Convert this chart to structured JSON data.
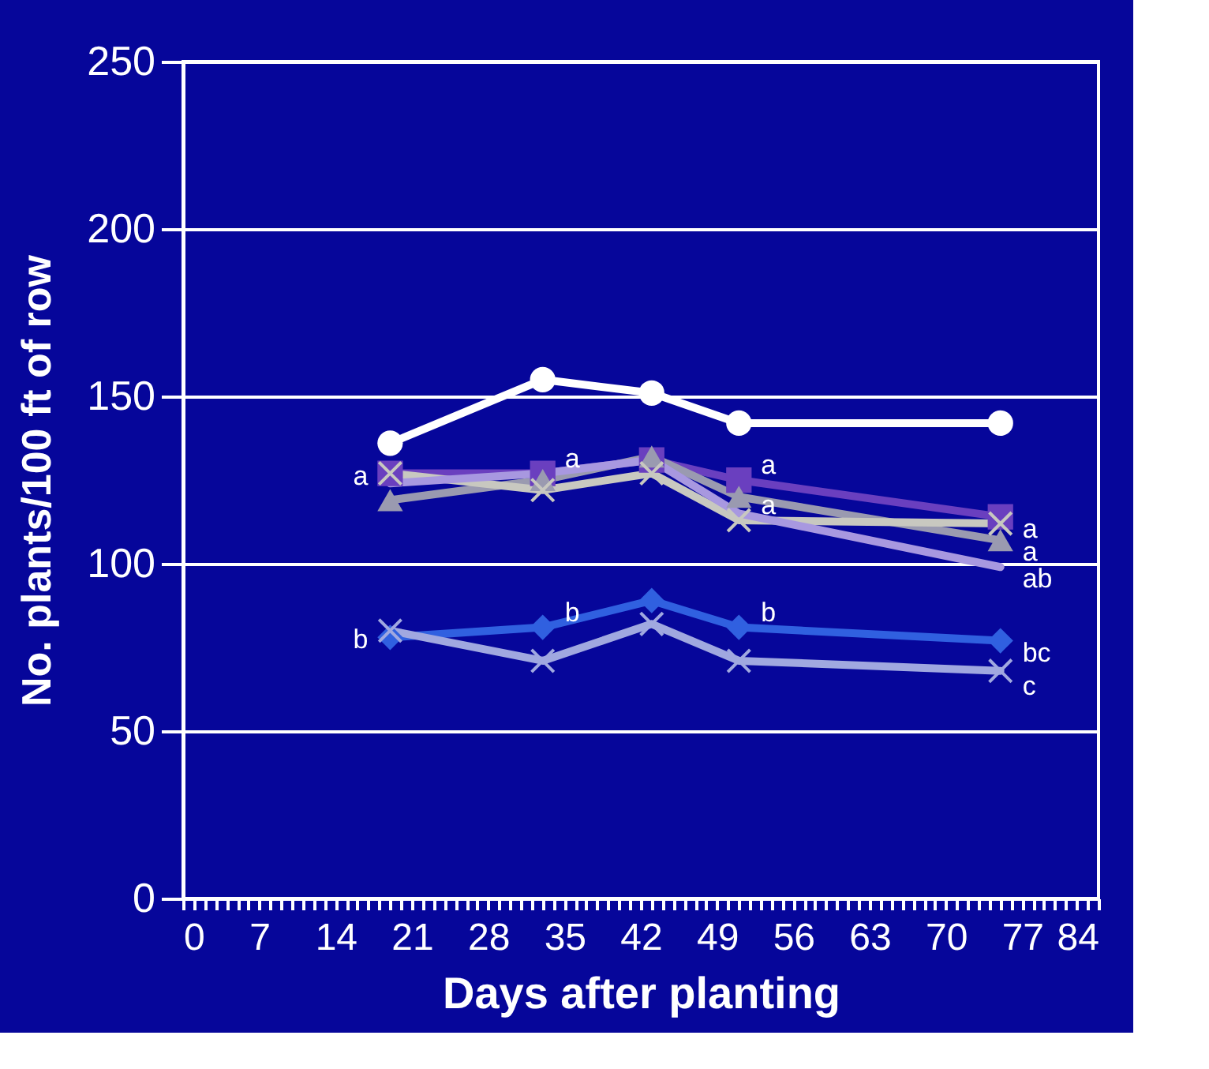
{
  "chart_data": {
    "type": "line",
    "xlabel": "Days after planting",
    "ylabel": "No. plants/100 ft of row",
    "x": [
      19,
      33,
      43,
      51,
      75
    ],
    "xlim": [
      0,
      84
    ],
    "ylim": [
      0,
      250
    ],
    "xticks": [
      0,
      {
        "value": 1,
        "label": null
      },
      {
        "value": 2,
        "label": null
      },
      {
        "value": 3,
        "label": null
      },
      {
        "value": 4,
        "label": null
      },
      {
        "value": 5,
        "label": null
      },
      {
        "value": 6,
        "label": null
      },
      7,
      {
        "value": 8,
        "label": null
      },
      {
        "value": 9,
        "label": null
      },
      {
        "value": 10,
        "label": null
      },
      {
        "value": 11,
        "label": null
      },
      {
        "value": 12,
        "label": null
      },
      {
        "value": 13,
        "label": null
      },
      14,
      {
        "value": 15,
        "label": null
      },
      {
        "value": 16,
        "label": null
      },
      {
        "value": 17,
        "label": null
      },
      {
        "value": 18,
        "label": null
      },
      {
        "value": 19,
        "label": null
      },
      {
        "value": 20,
        "label": null
      },
      21,
      {
        "value": 22,
        "label": null
      },
      {
        "value": 23,
        "label": null
      },
      {
        "value": 24,
        "label": null
      },
      {
        "value": 25,
        "label": null
      },
      {
        "value": 26,
        "label": null
      },
      {
        "value": 27,
        "label": null
      },
      28,
      {
        "value": 29,
        "label": null
      },
      {
        "value": 30,
        "label": null
      },
      {
        "value": 31,
        "label": null
      },
      {
        "value": 32,
        "label": null
      },
      {
        "value": 33,
        "label": null
      },
      {
        "value": 34,
        "label": null
      },
      35,
      {
        "value": 36,
        "label": null
      },
      {
        "value": 37,
        "label": null
      },
      {
        "value": 38,
        "label": null
      },
      {
        "value": 39,
        "label": null
      },
      {
        "value": 40,
        "label": null
      },
      {
        "value": 41,
        "label": null
      },
      42,
      {
        "value": 43,
        "label": null
      },
      {
        "value": 44,
        "label": null
      },
      {
        "value": 45,
        "label": null
      },
      {
        "value": 46,
        "label": null
      },
      {
        "value": 47,
        "label": null
      },
      {
        "value": 48,
        "label": null
      },
      49,
      {
        "value": 50,
        "label": null
      },
      {
        "value": 51,
        "label": null
      },
      {
        "value": 52,
        "label": null
      },
      {
        "value": 53,
        "label": null
      },
      {
        "value": 54,
        "label": null
      },
      {
        "value": 55,
        "label": null
      },
      56,
      {
        "value": 57,
        "label": null
      },
      {
        "value": 58,
        "label": null
      },
      {
        "value": 59,
        "label": null
      },
      {
        "value": 60,
        "label": null
      },
      {
        "value": 61,
        "label": null
      },
      {
        "value": 62,
        "label": null
      },
      63,
      {
        "value": 64,
        "label": null
      },
      {
        "value": 65,
        "label": null
      },
      {
        "value": 66,
        "label": null
      },
      {
        "value": 67,
        "label": null
      },
      {
        "value": 68,
        "label": null
      },
      {
        "value": 69,
        "label": null
      },
      70,
      {
        "value": 71,
        "label": null
      },
      {
        "value": 72,
        "label": null
      },
      {
        "value": 73,
        "label": null
      },
      {
        "value": 74,
        "label": null
      },
      {
        "value": 75,
        "label": null
      },
      {
        "value": 76,
        "label": null
      },
      77,
      {
        "value": 78,
        "label": null
      },
      {
        "value": 79,
        "label": null
      },
      {
        "value": 80,
        "label": null
      },
      {
        "value": 81,
        "label": null
      },
      {
        "value": 82,
        "label": null
      },
      {
        "value": 83,
        "label": null
      },
      84
    ],
    "yticks": [
      0,
      50,
      100,
      150,
      200,
      250
    ],
    "grid": "y",
    "line_style": "solid",
    "series": [
      {
        "color": "#ffffff",
        "marker": "circle",
        "values": [
          136,
          155,
          151,
          142,
          142
        ]
      },
      {
        "color": "#6a3fbf",
        "marker": "square",
        "values": [
          127,
          127,
          131,
          125,
          114
        ]
      },
      {
        "color": "#9a9ab0",
        "marker": "triangle",
        "values": [
          119,
          125,
          132,
          120,
          107
        ]
      },
      {
        "color": "#c8c8c0",
        "marker": "cross",
        "values": [
          127,
          122,
          127,
          113,
          112
        ]
      },
      {
        "color": "#a898e0",
        "marker": "none",
        "values": [
          124,
          127,
          131,
          115,
          99
        ]
      },
      {
        "color": "#3060e0",
        "marker": "diamond",
        "values": [
          78,
          81,
          89,
          81,
          77
        ]
      },
      {
        "color": "#a0a8e0",
        "marker": "cross",
        "values": [
          80,
          71,
          82,
          71,
          68
        ]
      }
    ],
    "annotations": [
      {
        "text": "a",
        "x": 19,
        "y": 127
      },
      {
        "text": "a",
        "x": 33,
        "y": 127
      },
      {
        "text": "a",
        "x": 51,
        "y": 125
      },
      {
        "text": "a",
        "x": 51,
        "y": 113
      },
      {
        "text": "a",
        "x": 75,
        "y": 114
      },
      {
        "text": "a",
        "x": 75,
        "y": 107
      },
      {
        "text": "ab",
        "x": 75,
        "y": 99
      },
      {
        "text": "b",
        "x": 19,
        "y": 78
      },
      {
        "text": "b",
        "x": 33,
        "y": 81
      },
      {
        "text": "b",
        "x": 51,
        "y": 81
      },
      {
        "text": "bc",
        "x": 75,
        "y": 77
      },
      {
        "text": "c",
        "x": 75,
        "y": 67
      }
    ]
  }
}
